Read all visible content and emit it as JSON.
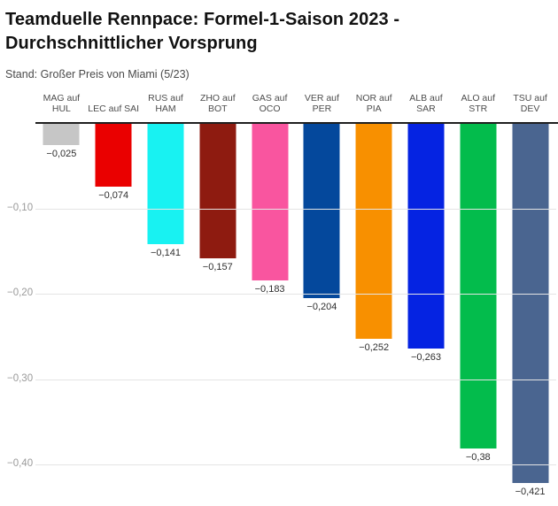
{
  "header": {
    "title": "Teamduelle Rennpace: Formel-1-Saison 2023 - Durchschnittlicher Vorsprung",
    "subtitle": "Stand: Großer Preis von Miami (5/23)"
  },
  "chart_data": {
    "type": "bar",
    "orientation": "vertical",
    "title": "Teamduelle Rennpace: Formel-1-Saison 2023 - Durchschnittlicher Vorsprung",
    "subtitle": "Stand: Großer Preis von Miami (5/23)",
    "xlabel": "",
    "ylabel": "",
    "grid": true,
    "legend": "none",
    "categories": [
      "MAG auf HUL",
      "LEC auf SAI",
      "RUS auf HAM",
      "ZHO auf BOT",
      "GAS auf OCO",
      "VER auf PER",
      "NOR auf PIA",
      "ALB auf SAR",
      "ALO auf STR",
      "TSU auf DEV"
    ],
    "values": [
      -0.025,
      -0.074,
      -0.141,
      -0.157,
      -0.183,
      -0.204,
      -0.252,
      -0.263,
      -0.38,
      -0.421
    ],
    "value_labels": [
      "−0,025",
      "−0,074",
      "−0,141",
      "−0,157",
      "−0,183",
      "−0,204",
      "−0,252",
      "−0,263",
      "−0,38",
      "−0,421"
    ],
    "bar_colors": [
      "#c6c6c6",
      "#ea0000",
      "#18f2f2",
      "#8e1b10",
      "#f9559f",
      "#04489c",
      "#f89000",
      "#0523e2",
      "#03bc4c",
      "#4a6590"
    ],
    "yticks": [
      -0.1,
      -0.2,
      -0.3,
      -0.4
    ],
    "ytick_labels": [
      "−0,10",
      "−0,20",
      "−0,30",
      "−0,40"
    ],
    "ylim": [
      -0.448,
      0
    ],
    "colors": {
      "zero_axis": "#1f1f1f",
      "gridline": "#e4e4e4",
      "tick_text": "#9a9a9a",
      "value_text": "#2e2e2e",
      "header_text": "#4d4d4d"
    }
  }
}
